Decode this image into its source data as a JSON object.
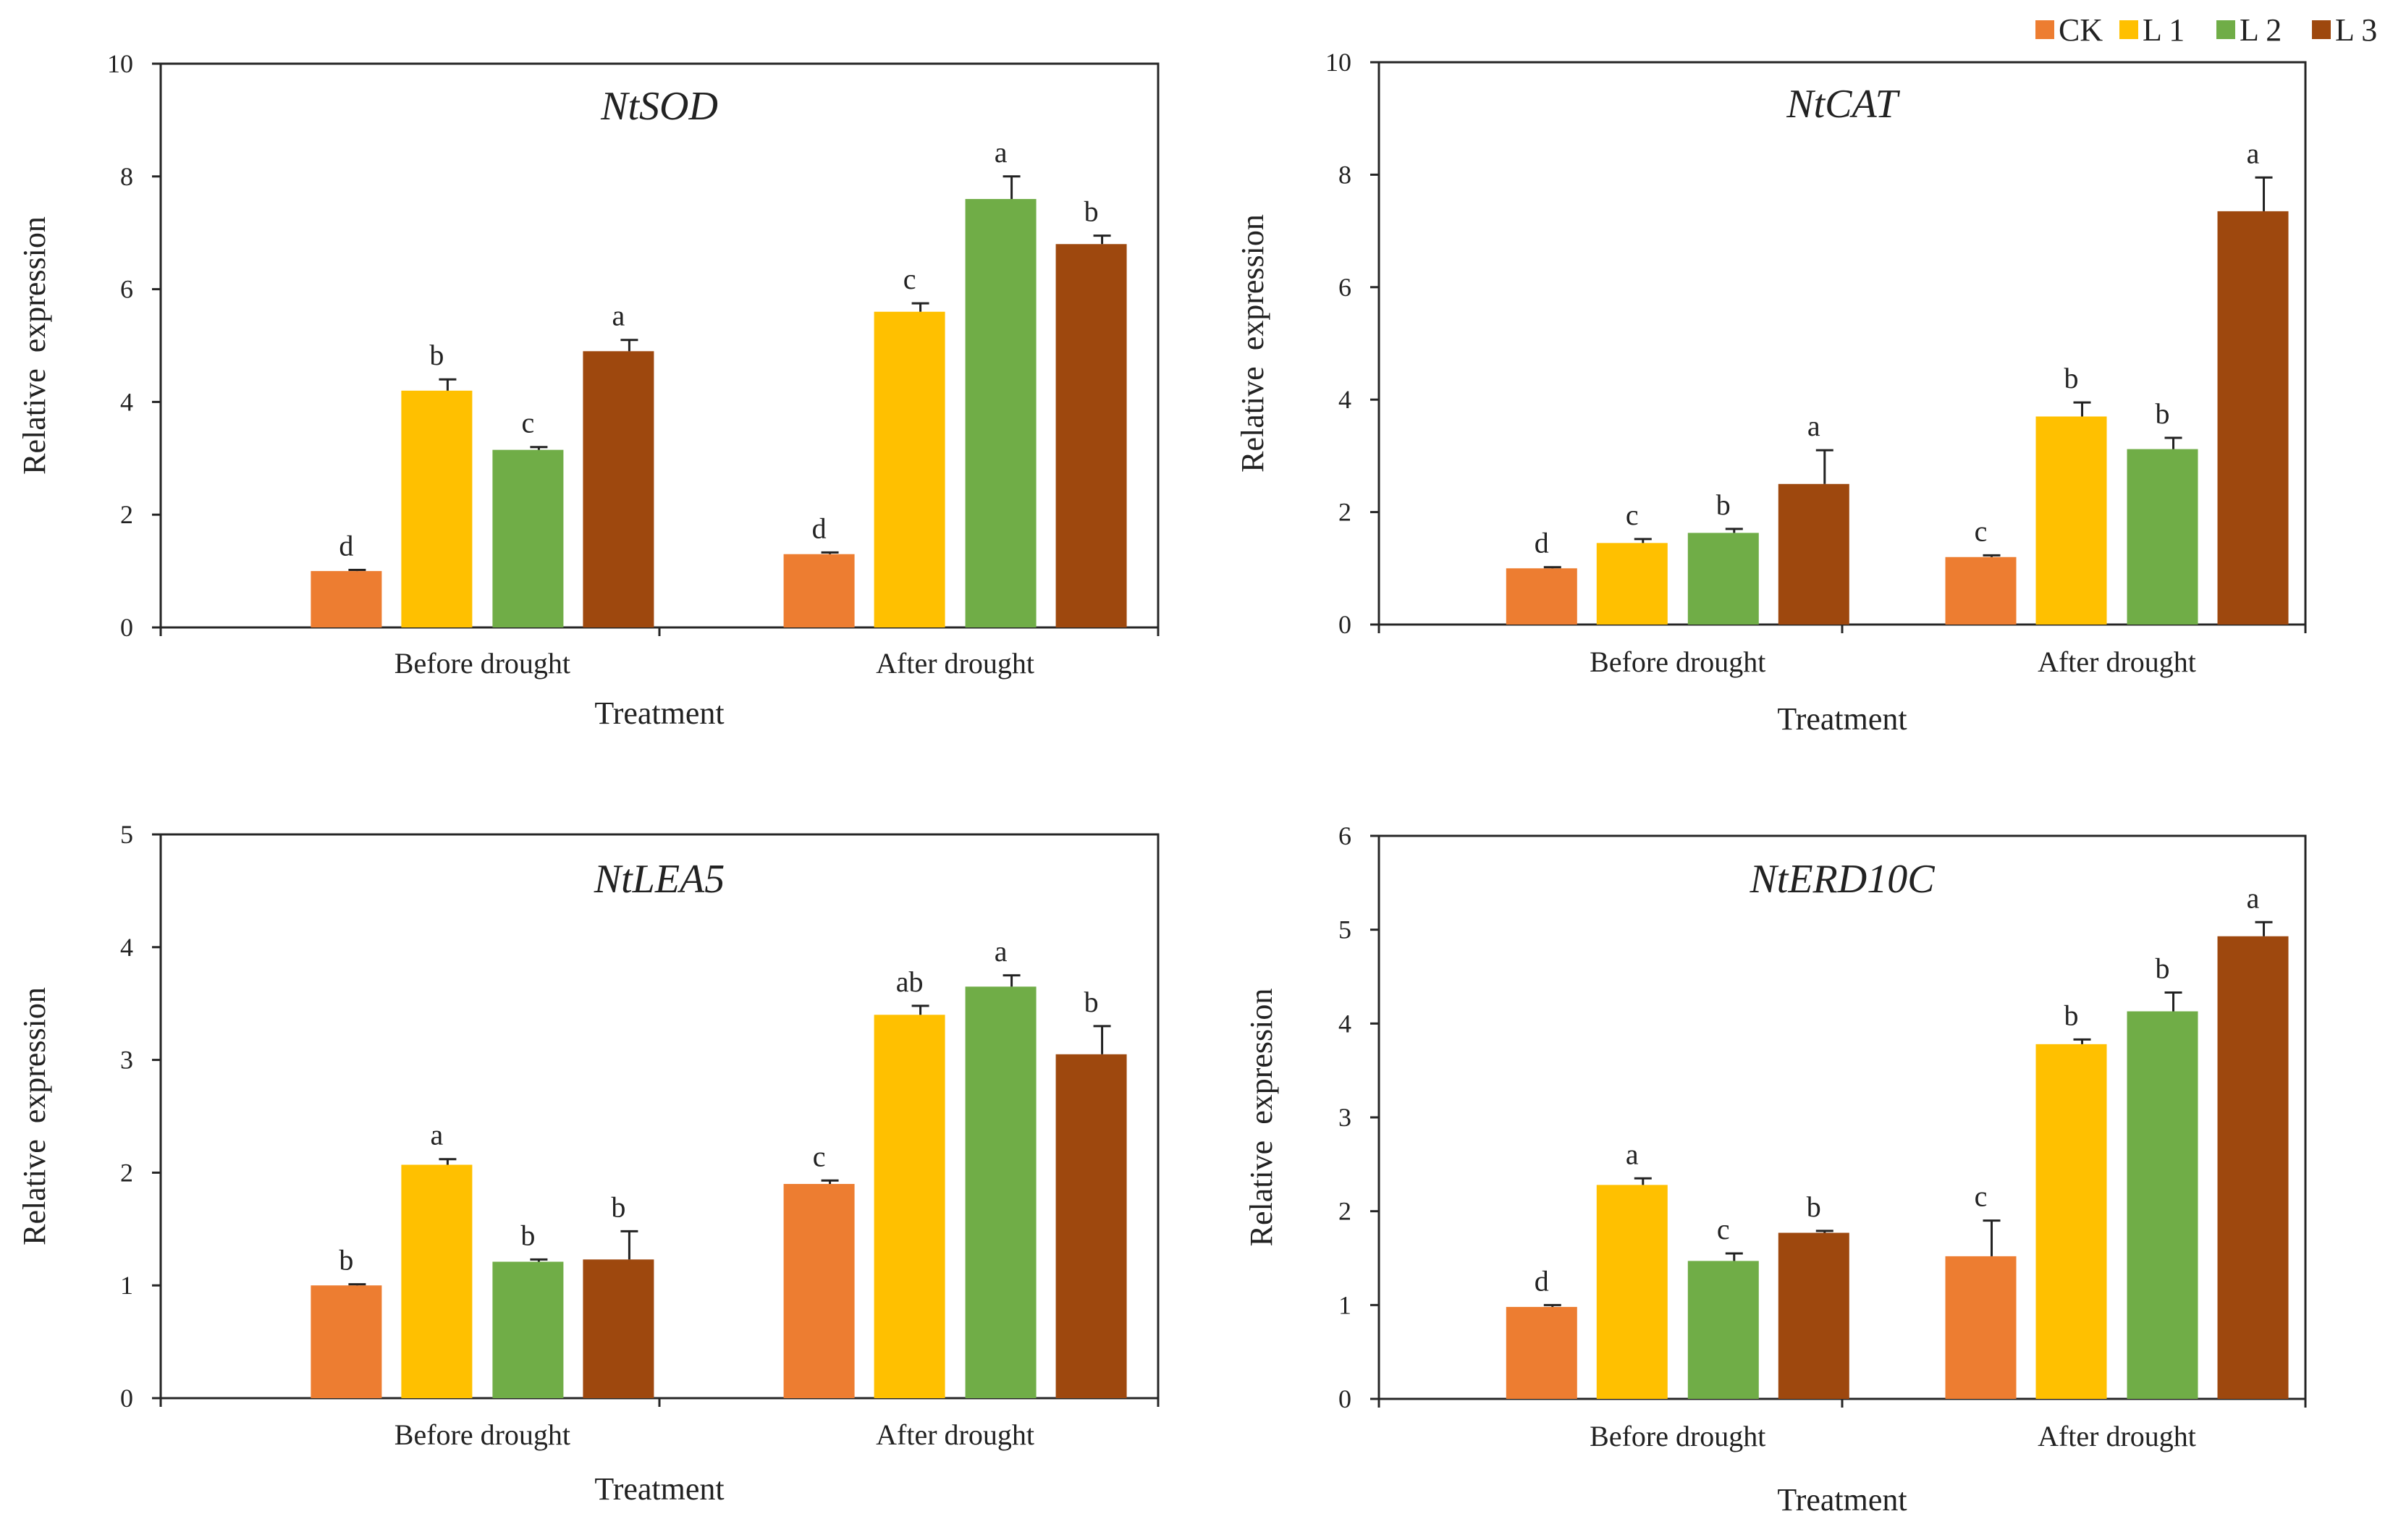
{
  "legend": [
    {
      "label": "CK",
      "color": "#ED7D31"
    },
    {
      "label": "L 1",
      "color": "#FFC000"
    },
    {
      "label": "L 2",
      "color": "#70AD47"
    },
    {
      "label": "L 3",
      "color": "#9E480E"
    }
  ],
  "chart_data": [
    {
      "type": "bar",
      "title": "NtSOD",
      "xlabel": "Treatment",
      "ylabel": "Relative  expression",
      "ylim": [
        0,
        10
      ],
      "yticks": [
        0,
        2,
        4,
        6,
        8,
        10
      ],
      "categories": [
        "Before drought",
        "After drought"
      ],
      "series": [
        {
          "name": "CK",
          "values": [
            1.0,
            1.3
          ],
          "errors": [
            0.02,
            0.03
          ],
          "letters": [
            "d",
            "d"
          ]
        },
        {
          "name": "L 1",
          "values": [
            4.2,
            5.6
          ],
          "errors": [
            0.2,
            0.15
          ],
          "letters": [
            "b",
            "c"
          ]
        },
        {
          "name": "L 2",
          "values": [
            3.15,
            7.6
          ],
          "errors": [
            0.05,
            0.4
          ],
          "letters": [
            "c",
            "a"
          ]
        },
        {
          "name": "L 3",
          "values": [
            4.9,
            6.8
          ],
          "errors": [
            0.2,
            0.15
          ],
          "letters": [
            "a",
            "b"
          ]
        }
      ]
    },
    {
      "type": "bar",
      "title": "NtCAT",
      "xlabel": "Treatment",
      "ylabel": "Relative  expression",
      "ylim": [
        0,
        10
      ],
      "yticks": [
        0,
        2,
        4,
        6,
        8,
        10
      ],
      "categories": [
        "Before drought",
        "After drought"
      ],
      "series": [
        {
          "name": "CK",
          "values": [
            1.0,
            1.2
          ],
          "errors": [
            0.02,
            0.03
          ],
          "letters": [
            "d",
            "c"
          ]
        },
        {
          "name": "L 1",
          "values": [
            1.45,
            3.7
          ],
          "errors": [
            0.07,
            0.25
          ],
          "letters": [
            "c",
            "b"
          ]
        },
        {
          "name": "L 2",
          "values": [
            1.63,
            3.12
          ],
          "errors": [
            0.07,
            0.2
          ],
          "letters": [
            "b",
            "b"
          ]
        },
        {
          "name": "L 3",
          "values": [
            2.5,
            7.35
          ],
          "errors": [
            0.6,
            0.6
          ],
          "letters": [
            "a",
            "a"
          ]
        }
      ]
    },
    {
      "type": "bar",
      "title": "NtLEA5",
      "xlabel": "Treatment",
      "ylabel": "Relative  expression",
      "ylim": [
        0,
        5
      ],
      "yticks": [
        0,
        1,
        2,
        3,
        4,
        5
      ],
      "categories": [
        "Before drought",
        "After drought"
      ],
      "series": [
        {
          "name": "CK",
          "values": [
            1.0,
            1.9
          ],
          "errors": [
            0.01,
            0.03
          ],
          "letters": [
            "b",
            "c"
          ]
        },
        {
          "name": "L 1",
          "values": [
            2.07,
            3.4
          ],
          "errors": [
            0.05,
            0.08
          ],
          "letters": [
            "a",
            "ab"
          ]
        },
        {
          "name": "L 2",
          "values": [
            1.21,
            3.65
          ],
          "errors": [
            0.02,
            0.1
          ],
          "letters": [
            "b",
            "a"
          ]
        },
        {
          "name": "L 3",
          "values": [
            1.23,
            3.05
          ],
          "errors": [
            0.25,
            0.25
          ],
          "letters": [
            "b",
            "b"
          ]
        }
      ]
    },
    {
      "type": "bar",
      "title": "NtERD10C",
      "xlabel": "Treatment",
      "ylabel": "Relative  expression",
      "ylim": [
        0,
        6
      ],
      "yticks": [
        0,
        1,
        2,
        3,
        4,
        5,
        6
      ],
      "categories": [
        "Before drought",
        "After drought"
      ],
      "series": [
        {
          "name": "CK",
          "values": [
            0.98,
            1.52
          ],
          "errors": [
            0.02,
            0.38
          ],
          "letters": [
            "d",
            "c"
          ]
        },
        {
          "name": "L 1",
          "values": [
            2.28,
            3.78
          ],
          "errors": [
            0.07,
            0.05
          ],
          "letters": [
            "a",
            "b"
          ]
        },
        {
          "name": "L 2",
          "values": [
            1.47,
            4.13
          ],
          "errors": [
            0.08,
            0.2
          ],
          "letters": [
            "c",
            "b"
          ]
        },
        {
          "name": "L 3",
          "values": [
            1.77,
            4.93
          ],
          "errors": [
            0.02,
            0.15
          ],
          "letters": [
            "b",
            "a"
          ]
        }
      ]
    }
  ]
}
